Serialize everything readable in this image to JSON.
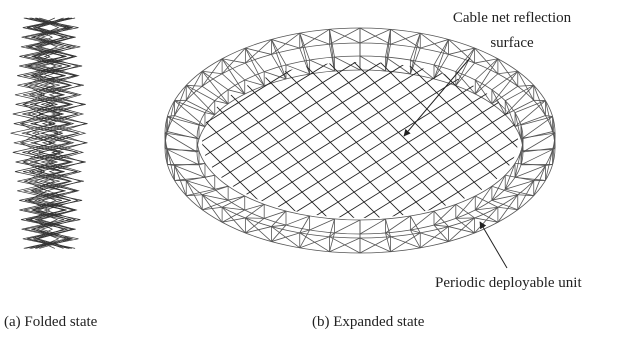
{
  "annotations": {
    "cable_net": [
      "Cable net reflection",
      "surface"
    ],
    "deployable_unit": "Periodic deployable unit"
  },
  "captions": [
    "(a) Folded state",
    "(b) Expanded state"
  ]
}
